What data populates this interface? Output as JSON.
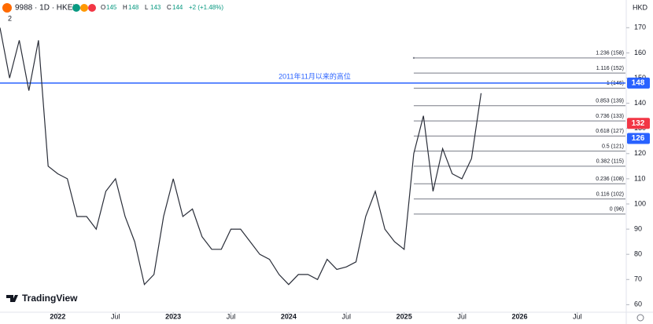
{
  "chart_data": {
    "type": "line",
    "title": "9988 · 1D · HKEX",
    "quote_labels": [
      "O",
      "H",
      "L",
      "C"
    ],
    "quote": [
      145,
      148,
      143,
      144
    ],
    "change": {
      "value": 2,
      "label": "+2 (+1.48%)"
    },
    "currency": "HKD",
    "pane_number": "2",
    "brand": "TradingView",
    "x": [
      "2021-07",
      "2021-08",
      "2021-09",
      "2021-10",
      "2021-11",
      "2021-12",
      "2022-01",
      "2022-02",
      "2022-03",
      "2022-04",
      "2022-05",
      "2022-06",
      "2022-07",
      "2022-08",
      "2022-09",
      "2022-10",
      "2022-11",
      "2022-12",
      "2023-01",
      "2023-02",
      "2023-03",
      "2023-04",
      "2023-05",
      "2023-06",
      "2023-07",
      "2023-08",
      "2023-09",
      "2023-10",
      "2023-11",
      "2023-12",
      "2024-01",
      "2024-02",
      "2024-03",
      "2024-04",
      "2024-05",
      "2024-06",
      "2024-07",
      "2024-08",
      "2024-09",
      "2024-10",
      "2024-11",
      "2024-12",
      "2025-01",
      "2025-02",
      "2025-03",
      "2025-04",
      "2025-05",
      "2025-06",
      "2025-07",
      "2025-08",
      "2025-09"
    ],
    "series": [
      {
        "name": "9988",
        "color": "#2a2e39",
        "values": [
          170,
          150,
          165,
          145,
          165,
          115,
          112,
          110,
          95,
          95,
          90,
          105,
          110,
          95,
          85,
          68,
          72,
          95,
          110,
          95,
          98,
          87,
          82,
          82,
          90,
          90,
          85,
          80,
          78,
          72,
          68,
          72,
          72,
          70,
          78,
          74,
          75,
          77,
          95,
          105,
          90,
          85,
          82,
          120,
          135,
          105,
          122,
          112,
          110,
          118,
          144
        ]
      }
    ],
    "xlim": [
      "2021-07",
      "2026-12"
    ],
    "xticks": [
      {
        "value": "2022-01",
        "label": "2022"
      },
      {
        "value": "2022-07",
        "label": "Jul"
      },
      {
        "value": "2023-01",
        "label": "2023"
      },
      {
        "value": "2023-07",
        "label": "Jul"
      },
      {
        "value": "2024-01",
        "label": "2024"
      },
      {
        "value": "2024-07",
        "label": "Jul"
      },
      {
        "value": "2025-01",
        "label": "2025"
      },
      {
        "value": "2025-07",
        "label": "Jul"
      },
      {
        "value": "2026-01",
        "label": "2026"
      },
      {
        "value": "2026-07",
        "label": "Jul"
      }
    ],
    "ylim": [
      57,
      181
    ],
    "yticks": [
      60,
      70,
      80,
      90,
      100,
      110,
      120,
      130,
      140,
      150,
      160,
      170
    ],
    "fib_levels": [
      {
        "value": 96,
        "label": "0 (96)"
      },
      {
        "value": 102,
        "label": "0.116 (102)"
      },
      {
        "value": 108,
        "label": "0.236 (108)"
      },
      {
        "value": 115,
        "label": "0.382 (115)"
      },
      {
        "value": 121,
        "label": "0.5 (121)"
      },
      {
        "value": 127,
        "label": "0.618 (127)"
      },
      {
        "value": 133,
        "label": "0.736 (133)"
      },
      {
        "value": 139,
        "label": "0.853 (139)"
      },
      {
        "value": 146,
        "label": "1 (146)"
      },
      {
        "value": 152,
        "label": "1.116 (152)"
      },
      {
        "value": 158,
        "label": "1.236 (158)"
      }
    ],
    "fib_start": "2025-02",
    "hline": {
      "value": 148,
      "label": "2011年11月以来的高位",
      "color": "#2962ff"
    },
    "price_labels": [
      {
        "value": 148,
        "color": "#2962ff"
      },
      {
        "value": 132,
        "color": "#f23645"
      },
      {
        "value": 126,
        "color": "#2962ff"
      }
    ]
  }
}
